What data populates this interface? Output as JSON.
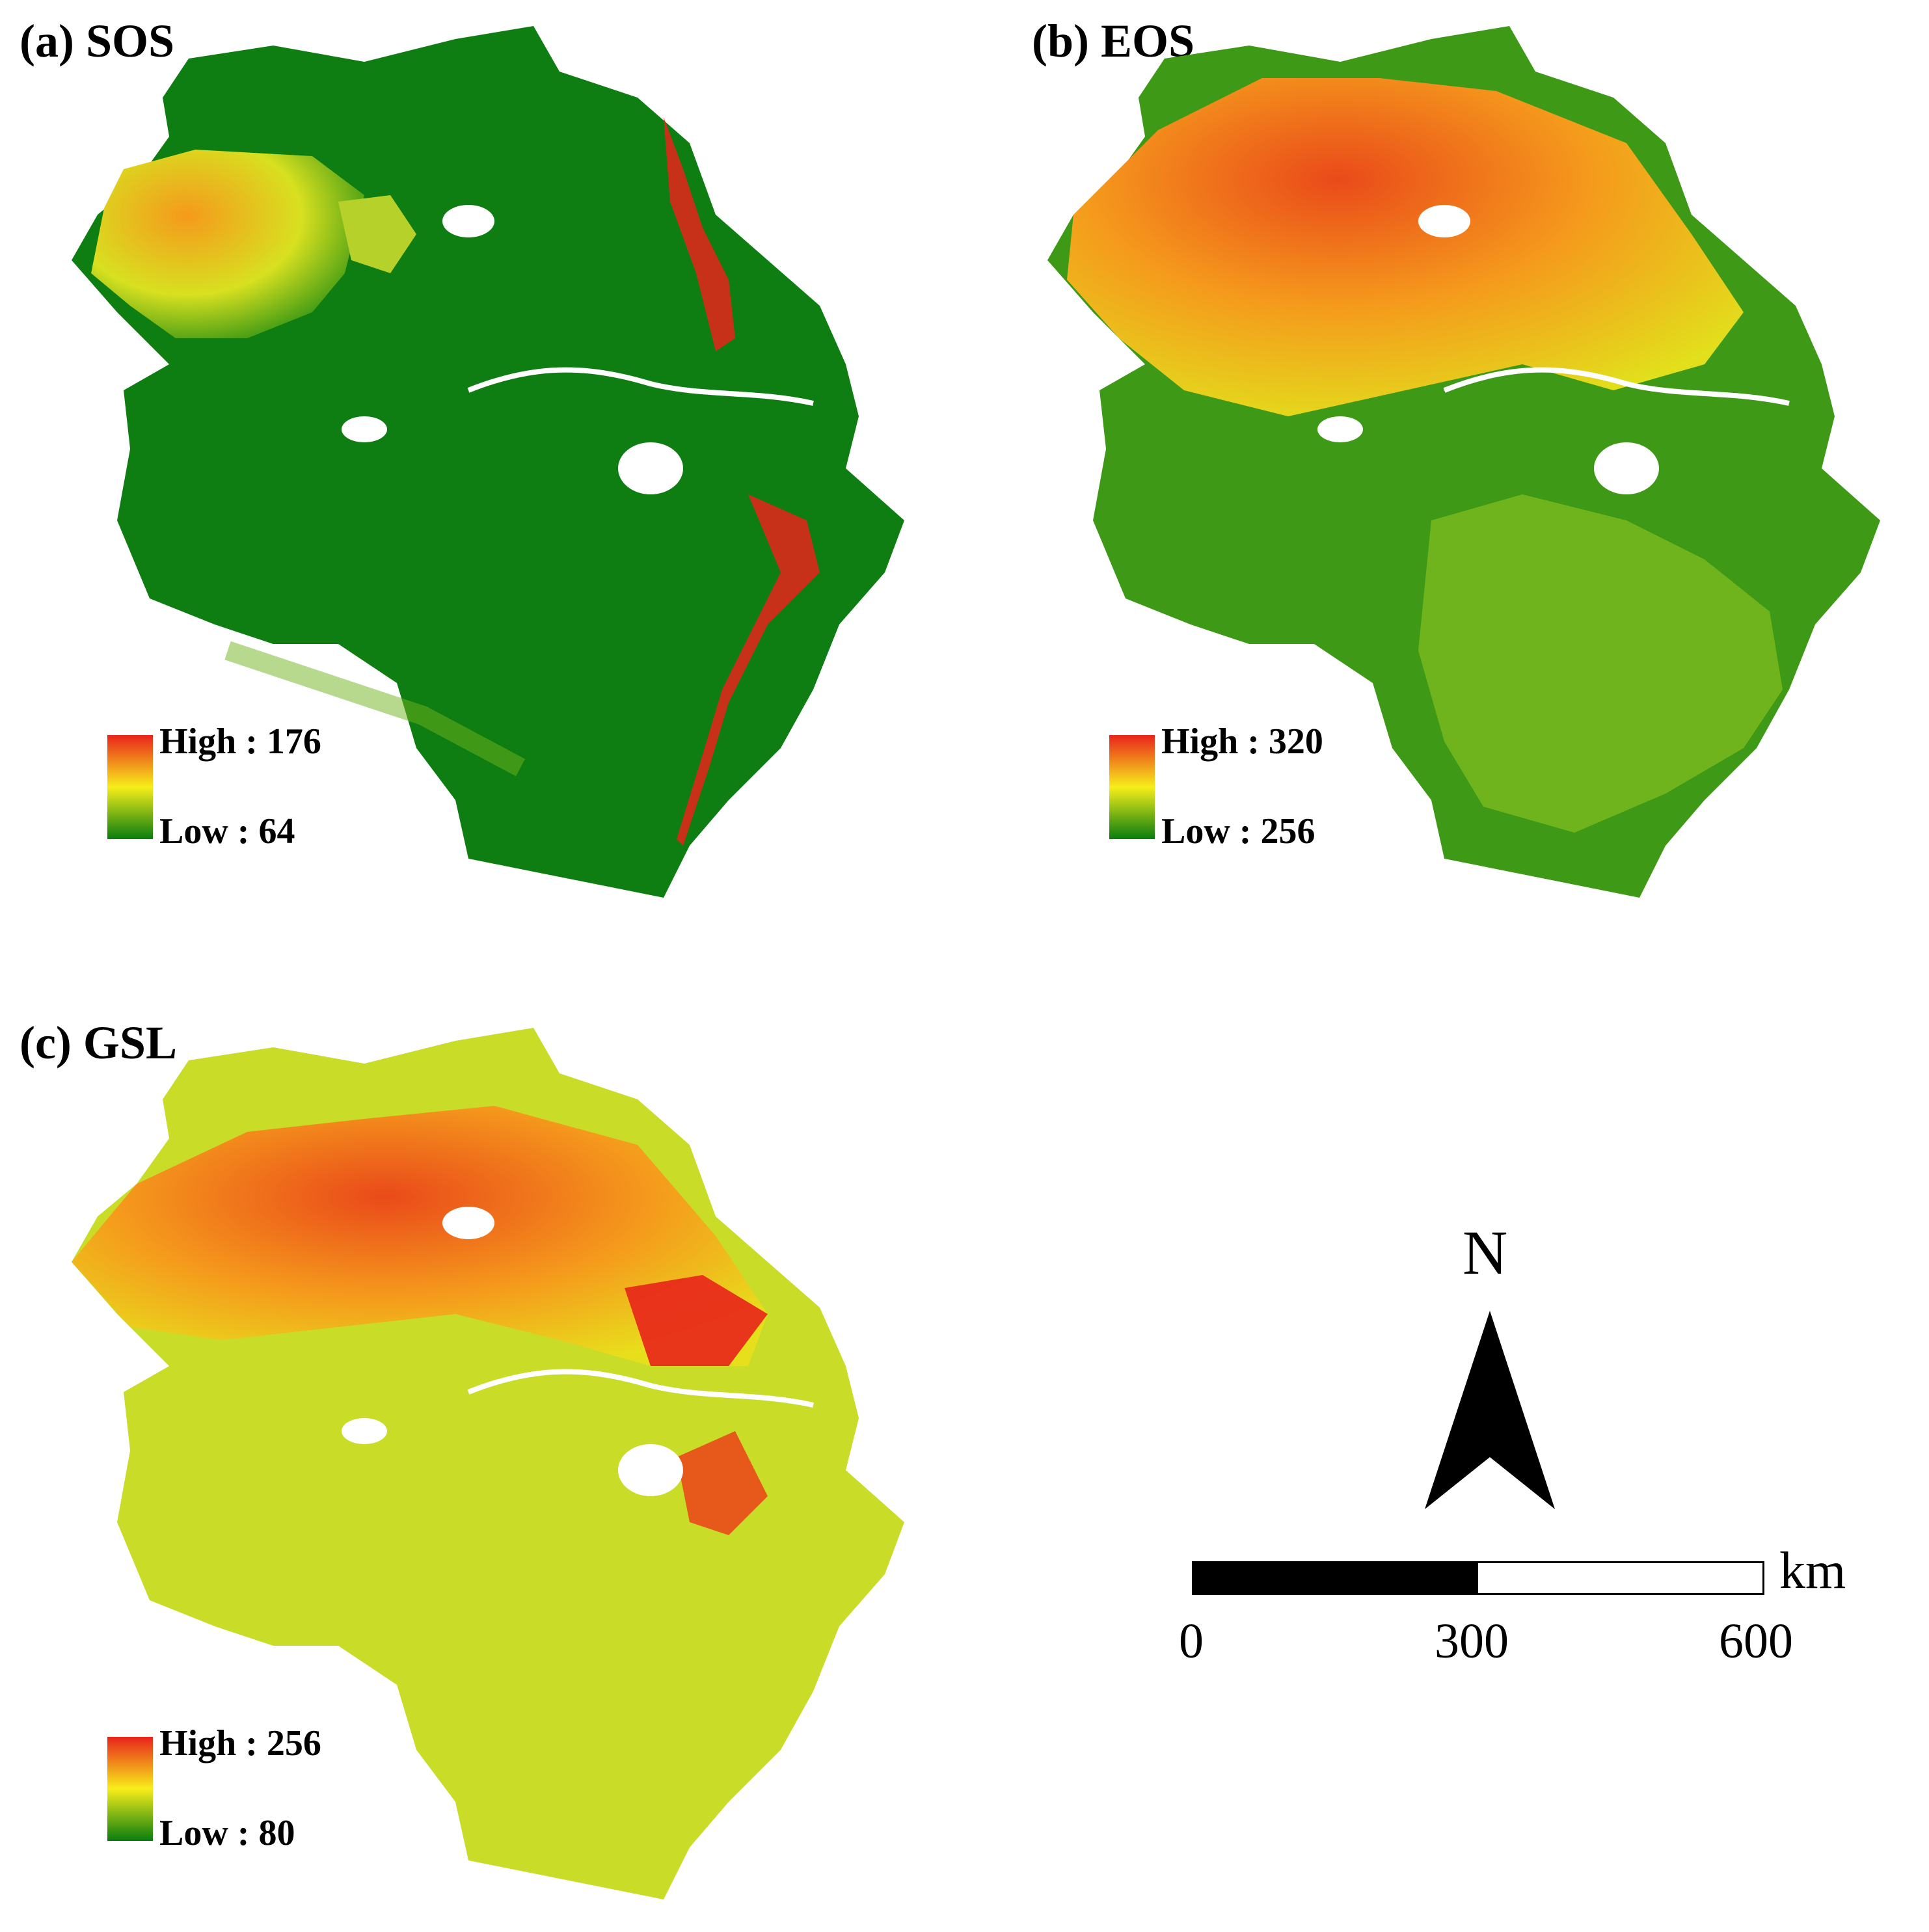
{
  "colors": {
    "high": "#e8231b",
    "mid": "#f7ee1a",
    "low": "#087d0e",
    "mid_orange": "#f59a1c",
    "mid_lime": "#b6d22a",
    "water": "#ffffff"
  },
  "panels": [
    {
      "id": "a",
      "title": "(a) SOS",
      "legend": {
        "high_label": "High : 176",
        "low_label": "Low : 64"
      }
    },
    {
      "id": "b",
      "title": "(b) EOS",
      "legend": {
        "high_label": "High : 320",
        "low_label": "Low : 256"
      }
    },
    {
      "id": "c",
      "title": "(c) GSL",
      "legend": {
        "high_label": "High : 256",
        "low_label": "Low : 80"
      }
    }
  ],
  "north_arrow": {
    "label": "N",
    "icon": "north-arrow-icon"
  },
  "scale_bar": {
    "unit": "km",
    "ticks": [
      "0",
      "300",
      "600"
    ]
  }
}
